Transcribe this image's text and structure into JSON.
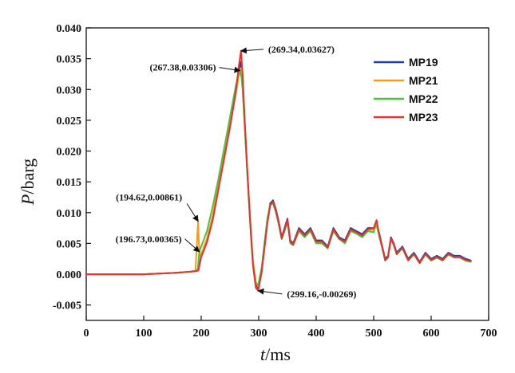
{
  "chart_data": {
    "type": "line",
    "xlabel_var": "t",
    "xlabel_unit": "/ms",
    "ylabel_var": "P",
    "ylabel_unit": "/barg",
    "xlim": [
      0,
      700
    ],
    "ylim": [
      -0.0075,
      0.04
    ],
    "x_ticks": [
      "0",
      "100",
      "200",
      "300",
      "400",
      "500",
      "600",
      "700"
    ],
    "x_tick_values": [
      0,
      100,
      200,
      300,
      400,
      500,
      600,
      700
    ],
    "y_ticks": [
      "-0.005",
      "0.000",
      "0.005",
      "0.010",
      "0.015",
      "0.020",
      "0.025",
      "0.030",
      "0.035",
      "0.040"
    ],
    "y_tick_values": [
      -0.005,
      0,
      0.005,
      0.01,
      0.015,
      0.02,
      0.025,
      0.03,
      0.035,
      0.04
    ],
    "grid": false,
    "legend_position": "top-right",
    "series": [
      {
        "name": "MP19",
        "color": "#1f3fa6",
        "x": [
          0,
          100,
          150,
          180,
          190,
          195,
          200,
          210,
          220,
          230,
          240,
          250,
          260,
          265,
          269,
          272,
          276,
          280,
          285,
          290,
          295,
          299,
          305,
          310,
          315,
          320,
          325,
          330,
          335,
          340,
          345,
          350,
          355,
          360,
          370,
          380,
          390,
          400,
          410,
          420,
          430,
          440,
          450,
          460,
          470,
          480,
          490,
          500,
          505,
          510,
          515,
          520,
          525,
          530,
          535,
          540,
          550,
          560,
          570,
          580,
          590,
          600,
          610,
          620,
          630,
          640,
          650,
          660,
          670
        ],
        "y": [
          0,
          0,
          0.0002,
          0.0004,
          0.0005,
          0.0006,
          0.003,
          0.0055,
          0.009,
          0.014,
          0.019,
          0.024,
          0.0295,
          0.0325,
          0.0345,
          0.031,
          0.024,
          0.017,
          0.009,
          0.002,
          -0.0015,
          -0.0023,
          0.0005,
          0.0045,
          0.0085,
          0.0115,
          0.012,
          0.0105,
          0.0085,
          0.006,
          0.0075,
          0.009,
          0.0055,
          0.005,
          0.0075,
          0.0065,
          0.0075,
          0.0055,
          0.0055,
          0.0045,
          0.0075,
          0.006,
          0.0055,
          0.0075,
          0.007,
          0.0065,
          0.0075,
          0.0075,
          0.008,
          0.0065,
          0.0045,
          0.0025,
          0.003,
          0.006,
          0.005,
          0.0035,
          0.0045,
          0.0025,
          0.0035,
          0.002,
          0.0035,
          0.0025,
          0.003,
          0.0025,
          0.0035,
          0.003,
          0.003,
          0.0025,
          0.0022
        ]
      },
      {
        "name": "MP21",
        "color": "#f39c1e",
        "x": [
          0,
          100,
          150,
          180,
          190,
          194.62,
          196,
          198,
          200,
          210,
          220,
          230,
          240,
          250,
          260,
          265,
          269,
          272,
          276,
          280,
          285,
          290,
          295,
          299,
          305,
          310,
          315,
          320,
          325,
          330,
          335,
          340,
          345,
          350,
          355,
          360,
          370,
          380,
          390,
          400,
          410,
          420,
          430,
          440,
          450,
          460,
          470,
          480,
          490,
          500,
          505,
          510,
          515,
          520,
          525,
          530,
          535,
          540,
          550,
          560,
          570,
          580,
          590,
          600,
          610,
          620,
          630,
          640,
          650,
          660,
          670
        ],
        "y": [
          0,
          0,
          0.0002,
          0.0004,
          0.0006,
          0.00861,
          0.005,
          0.003,
          0.0032,
          0.0058,
          0.0095,
          0.0145,
          0.0195,
          0.0245,
          0.0292,
          0.032,
          0.0335,
          0.031,
          0.024,
          0.017,
          0.0092,
          0.0022,
          -0.0012,
          -0.002,
          0.0007,
          0.0047,
          0.0087,
          0.0112,
          0.0117,
          0.0102,
          0.0082,
          0.0058,
          0.0072,
          0.0087,
          0.0052,
          0.0048,
          0.0072,
          0.0062,
          0.0072,
          0.0052,
          0.0052,
          0.0043,
          0.0072,
          0.0058,
          0.0052,
          0.0072,
          0.0068,
          0.0062,
          0.0072,
          0.0072,
          0.0078,
          0.0062,
          0.0043,
          0.0023,
          0.0028,
          0.0058,
          0.0048,
          0.0033,
          0.0043,
          0.0023,
          0.0033,
          0.0018,
          0.0033,
          0.0023,
          0.0028,
          0.0023,
          0.0033,
          0.0028,
          0.0028,
          0.0023,
          0.002
        ]
      },
      {
        "name": "MP22",
        "color": "#4cc23a",
        "x": [
          0,
          100,
          150,
          180,
          190,
          194,
          196.73,
          200,
          210,
          220,
          230,
          240,
          250,
          260,
          265,
          267.38,
          270,
          272,
          276,
          280,
          285,
          290,
          295,
          299,
          305,
          310,
          315,
          320,
          325,
          330,
          335,
          340,
          345,
          350,
          355,
          360,
          370,
          380,
          390,
          400,
          410,
          420,
          430,
          440,
          450,
          460,
          470,
          480,
          490,
          500,
          505,
          510,
          515,
          520,
          525,
          530,
          535,
          540,
          550,
          560,
          570,
          580,
          590,
          600,
          610,
          620,
          630,
          640,
          650,
          660,
          670
        ],
        "y": [
          0,
          0,
          0.0002,
          0.0004,
          0.0005,
          0.0008,
          0.00365,
          0.0045,
          0.007,
          0.011,
          0.0155,
          0.0205,
          0.0255,
          0.0305,
          0.0325,
          0.03306,
          0.032,
          0.03,
          0.0235,
          0.0165,
          0.0085,
          0.0015,
          -0.0015,
          -0.0018,
          0.001,
          0.005,
          0.009,
          0.0113,
          0.0115,
          0.01,
          0.008,
          0.0057,
          0.007,
          0.0085,
          0.005,
          0.0047,
          0.007,
          0.006,
          0.007,
          0.005,
          0.005,
          0.0042,
          0.007,
          0.0057,
          0.005,
          0.007,
          0.0066,
          0.006,
          0.007,
          0.0068,
          0.0085,
          0.006,
          0.0042,
          0.0022,
          0.0027,
          0.0057,
          0.0047,
          0.0032,
          0.0042,
          0.0022,
          0.0032,
          0.0018,
          0.0032,
          0.0022,
          0.0027,
          0.0022,
          0.0032,
          0.0027,
          0.0027,
          0.0022,
          0.002
        ]
      },
      {
        "name": "MP23",
        "color": "#e8312f",
        "x": [
          0,
          100,
          150,
          180,
          190,
          195,
          200,
          210,
          220,
          230,
          240,
          250,
          260,
          265,
          269.34,
          272,
          276,
          280,
          285,
          290,
          295,
          299.16,
          305,
          310,
          315,
          320,
          325,
          330,
          335,
          340,
          345,
          350,
          355,
          360,
          370,
          380,
          390,
          400,
          410,
          420,
          430,
          440,
          450,
          460,
          470,
          480,
          490,
          500,
          505,
          510,
          515,
          520,
          525,
          530,
          535,
          540,
          550,
          560,
          570,
          580,
          590,
          600,
          610,
          620,
          630,
          640,
          650,
          660,
          670
        ],
        "y": [
          0,
          0,
          0.0002,
          0.0004,
          0.0005,
          0.0006,
          0.0028,
          0.0052,
          0.0088,
          0.0138,
          0.0188,
          0.0238,
          0.0295,
          0.0335,
          0.03627,
          0.0325,
          0.0245,
          0.0172,
          0.0088,
          0.0015,
          -0.0022,
          -0.00269,
          0.0002,
          0.0042,
          0.0082,
          0.0112,
          0.0118,
          0.0103,
          0.0083,
          0.0058,
          0.0073,
          0.0088,
          0.0053,
          0.0048,
          0.0073,
          0.0063,
          0.0073,
          0.0053,
          0.0053,
          0.0043,
          0.0073,
          0.0058,
          0.0053,
          0.0073,
          0.0068,
          0.0063,
          0.0073,
          0.0075,
          0.0088,
          0.0063,
          0.0043,
          0.0023,
          0.0028,
          0.0058,
          0.0048,
          0.0033,
          0.0043,
          0.0023,
          0.0033,
          0.0018,
          0.0033,
          0.0023,
          0.0028,
          0.0023,
          0.0033,
          0.0028,
          0.0028,
          0.0023,
          0.0021
        ]
      }
    ],
    "annotations": [
      {
        "text": "(269.34,0.03627)",
        "x": 269.34,
        "y": 0.03627,
        "side": "right"
      },
      {
        "text": "(267.38,0.03306)",
        "x": 267.38,
        "y": 0.03306,
        "side": "left"
      },
      {
        "text": "(194.62,0.00861)",
        "x": 194.62,
        "y": 0.00861,
        "side": "left"
      },
      {
        "text": "(196.73,0.00365)",
        "x": 196.73,
        "y": 0.00365,
        "side": "left"
      },
      {
        "text": "(299.16,-0.00269)",
        "x": 299.16,
        "y": -0.00269,
        "side": "right"
      }
    ]
  }
}
